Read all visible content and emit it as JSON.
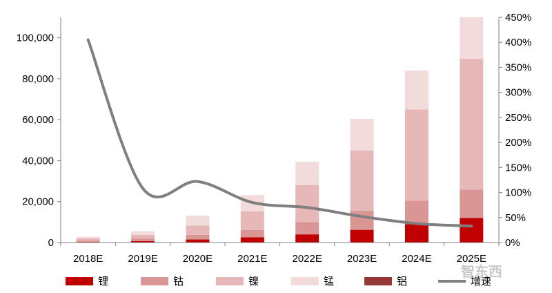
{
  "chart_data": {
    "type": "bar",
    "stacked": true,
    "categories": [
      "2018E",
      "2019E",
      "2020E",
      "2021E",
      "2022E",
      "2023E",
      "2024E",
      "2025E"
    ],
    "series": [
      {
        "name": "锂",
        "type": "bar",
        "color": "#c00000",
        "values": [
          300,
          700,
          1500,
          2600,
          4000,
          6200,
          9000,
          12000
        ]
      },
      {
        "name": "钴",
        "type": "bar",
        "color": "#d99694",
        "values": [
          700,
          1300,
          2300,
          3500,
          6000,
          9300,
          11500,
          13800
        ]
      },
      {
        "name": "镍",
        "type": "bar",
        "color": "#e6b9b8",
        "values": [
          1000,
          1800,
          4500,
          9200,
          18000,
          29500,
          44500,
          64000
        ]
      },
      {
        "name": "锰",
        "type": "bar",
        "color": "#f2dcdb",
        "values": [
          800,
          1700,
          4900,
          7900,
          11400,
          15400,
          19000,
          20200
        ]
      },
      {
        "name": "铝",
        "type": "bar",
        "color": "#953735",
        "values": [
          0,
          0,
          0,
          0,
          0,
          0,
          0,
          0
        ]
      },
      {
        "name": "增速",
        "type": "line",
        "axis": "right",
        "color": "#7f7f7f",
        "values": [
          405,
          108,
          122,
          80,
          70,
          52,
          38,
          33
        ]
      }
    ],
    "y_left": {
      "min": 0,
      "max": 110000,
      "ticks": [
        0,
        20000,
        40000,
        60000,
        80000,
        100000
      ],
      "tick_labels": [
        "0",
        "20,000",
        "40,000",
        "60,000",
        "80,000",
        "100,000"
      ]
    },
    "y_right": {
      "min": 0,
      "max": 450,
      "ticks": [
        0,
        50,
        100,
        150,
        200,
        250,
        300,
        350,
        400,
        450
      ],
      "tick_labels": [
        "0%",
        "50%",
        "100%",
        "150%",
        "200%",
        "250%",
        "300%",
        "350%",
        "400%",
        "450%"
      ]
    },
    "grid": false,
    "legend_position": "bottom"
  },
  "watermark": "智东西"
}
